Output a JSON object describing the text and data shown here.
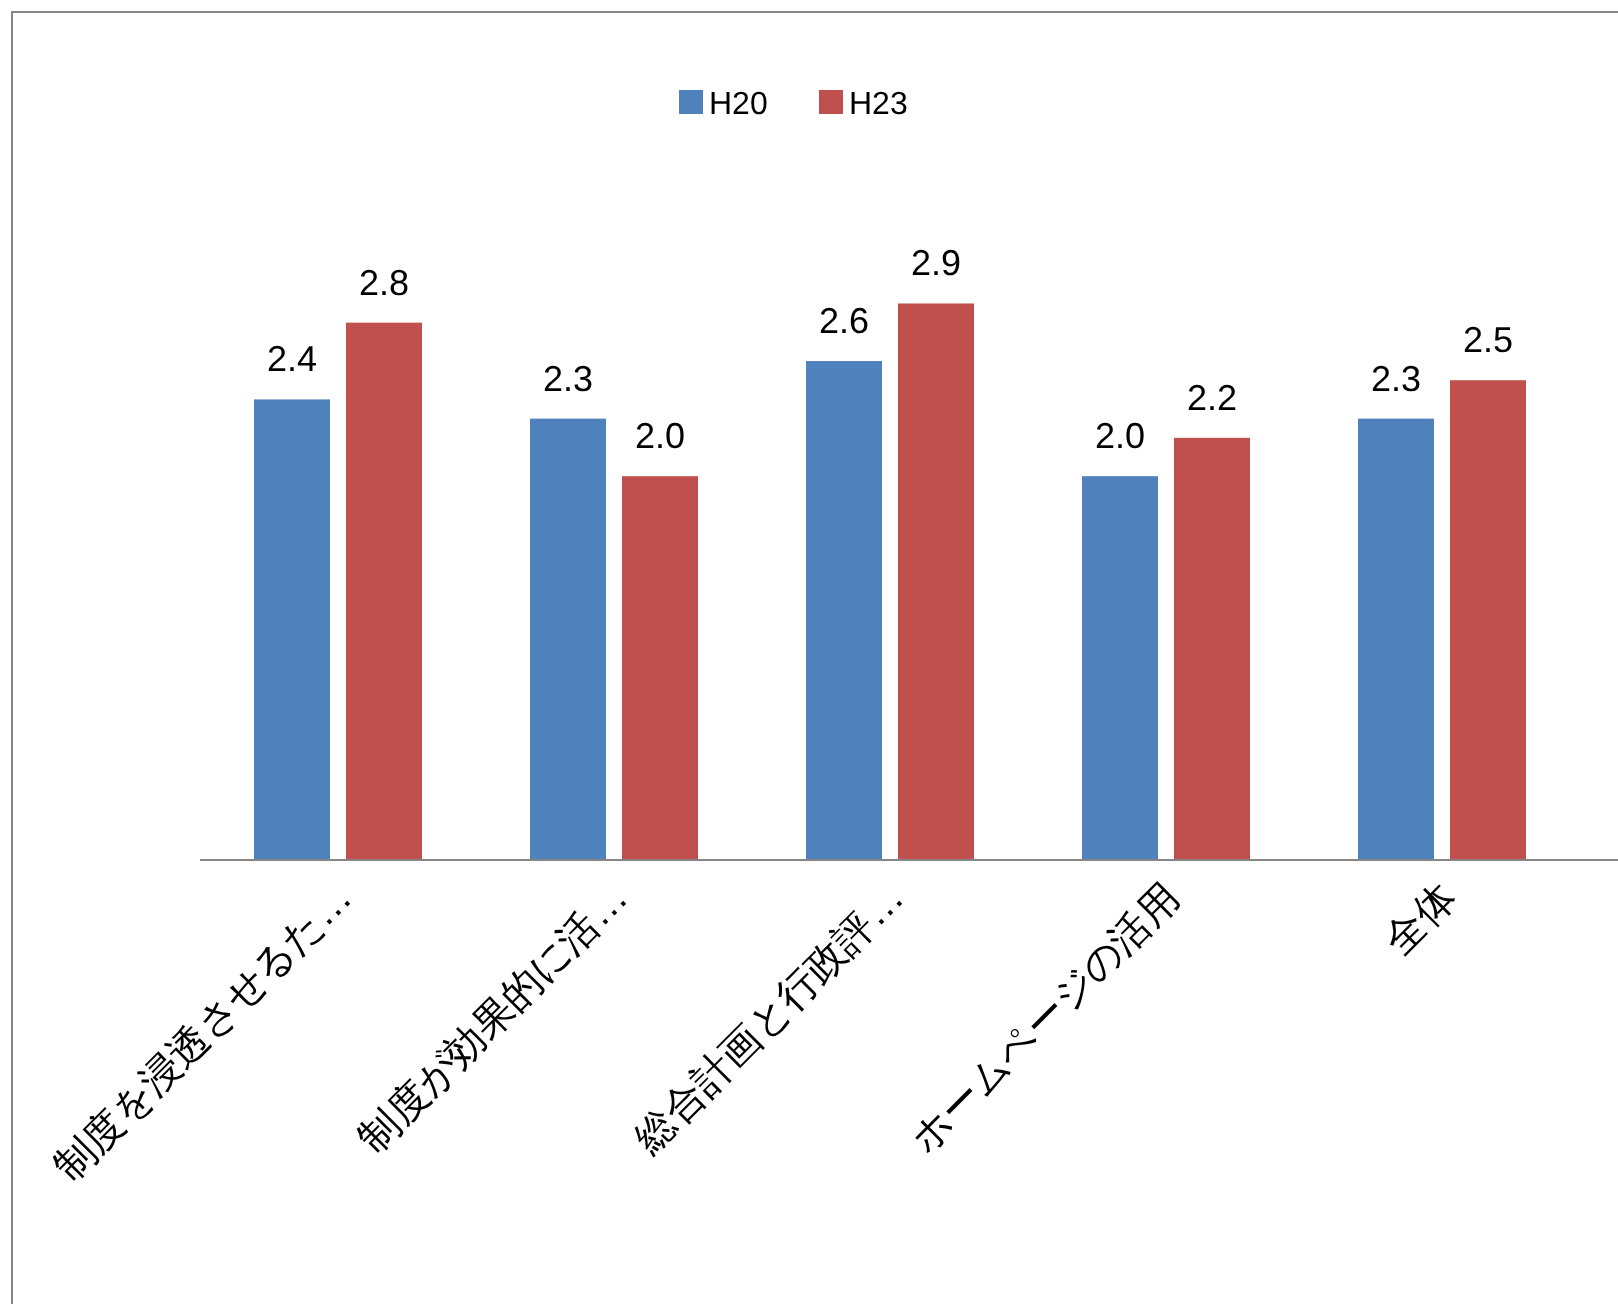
{
  "chart_data": {
    "type": "bar",
    "categories": [
      "制度を浸透させるた…",
      "制度が効果的に活…",
      "総合計画と行政評…",
      "ホームページの活用",
      "全体"
    ],
    "series": [
      {
        "name": "H20",
        "color": "#4f81bd",
        "values": [
          2.4,
          2.3,
          2.6,
          2.0,
          2.3
        ],
        "value_labels": [
          "2.4",
          "2.3",
          "2.6",
          "2.0",
          "2.3"
        ]
      },
      {
        "name": "H23",
        "color": "#c0504d",
        "values": [
          2.8,
          2.0,
          2.9,
          2.2,
          2.5
        ],
        "value_labels": [
          "2.8",
          "2.0",
          "2.9",
          "2.2",
          "2.5"
        ]
      }
    ],
    "legend": "top"
  }
}
